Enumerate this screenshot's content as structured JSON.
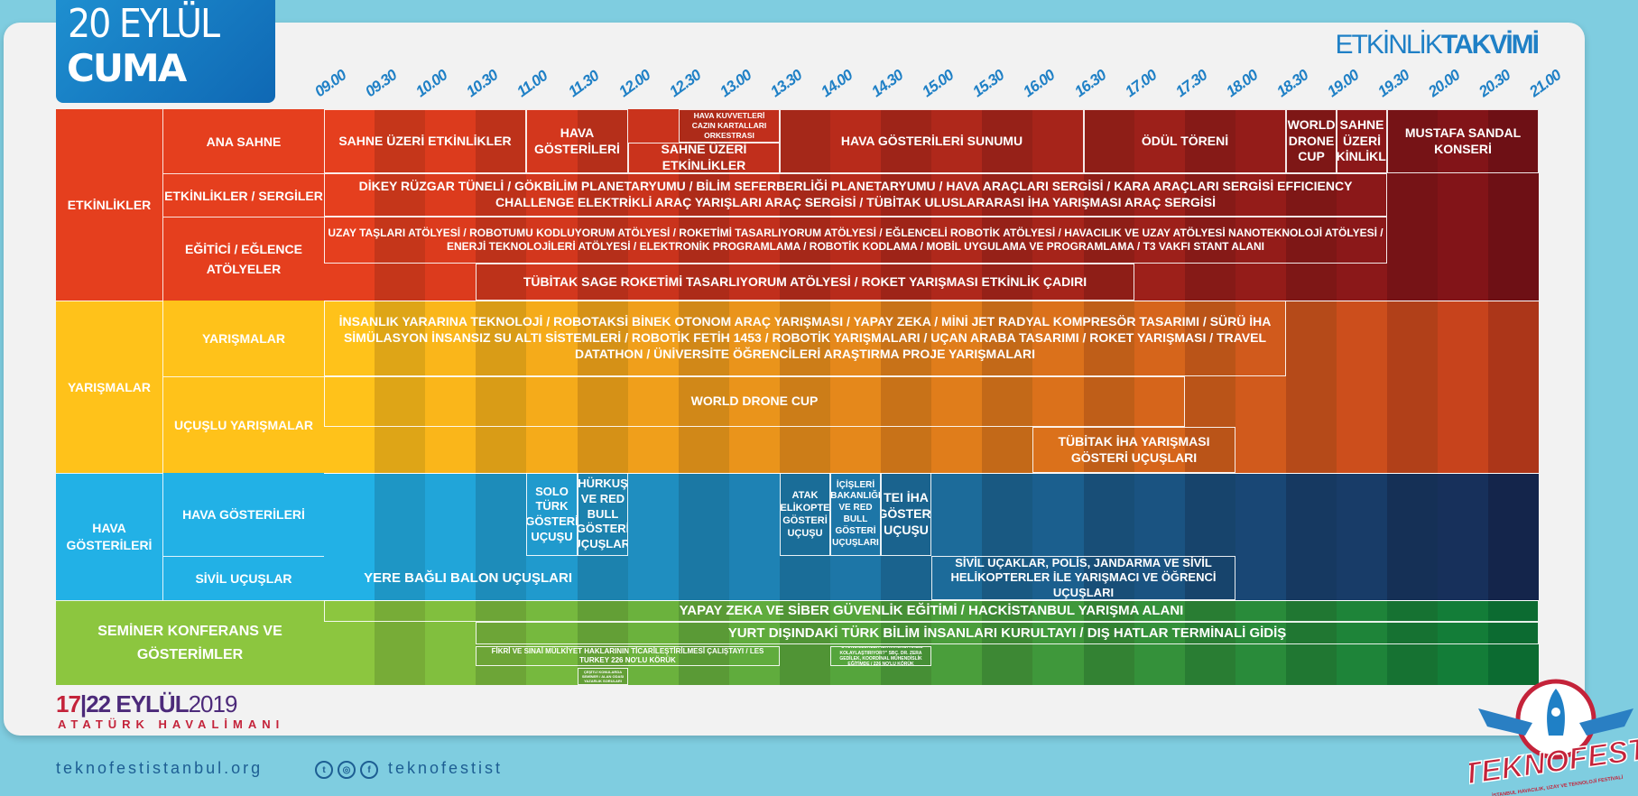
{
  "header": {
    "date_line1": "20 EYLÜL",
    "date_line2": "CUMA",
    "title_light": "ETKİNLİK",
    "title_bold": "TAKVİMİ"
  },
  "times": [
    "09.00",
    "09.30",
    "10.00",
    "10.30",
    "11.00",
    "11.30",
    "12.00",
    "12.30",
    "13.00",
    "13.30",
    "14.00",
    "14.30",
    "15.00",
    "15.30",
    "16.00",
    "16.30",
    "17.00",
    "17.30",
    "18.00",
    "18.30",
    "19.00",
    "19.30",
    "20.00",
    "20.30",
    "21.00"
  ],
  "categories": [
    {
      "id": "etk",
      "label": "ETKİNLİKLER",
      "colors": [
        "#e53f1e",
        "#7d1218"
      ]
    },
    {
      "id": "yar",
      "label": "YARIŞMALAR",
      "colors": [
        "#ffc21a",
        "#c43d1c"
      ]
    },
    {
      "id": "hava",
      "label": "HAVA GÖSTERİLERİ",
      "colors": [
        "#22b1e6",
        "#172a55"
      ]
    },
    {
      "id": "sem",
      "label": "SEMİNER KONFERANS VE GÖSTERİMLER",
      "colors": [
        "#8cc63f",
        "#0e7a38"
      ]
    }
  ],
  "subcategories": [
    {
      "label": "ANA SAHNE"
    },
    {
      "label": "ETKİNLİKLER / SERGİLER"
    },
    {
      "label": "EĞİTİCİ / EĞLENCE ATÖLYELER"
    },
    {
      "label": "YARIŞMALAR"
    },
    {
      "label": "UÇUŞLU YARIŞMALAR"
    },
    {
      "label": "HAVA GÖSTERİLERİ"
    },
    {
      "label": "SİVİL UÇUŞLAR"
    }
  ],
  "activities": [
    {
      "text": "SAHNE ÜZERİ ETKİNLİKLER"
    },
    {
      "text": "HAVA GÖSTERİLERİ"
    },
    {
      "text": "HAVA KUVVETLERİ CAZIN KARTALLARI ORKESTRASI"
    },
    {
      "text": "SAHNE ÜZERİ ETKİNLİKLER"
    },
    {
      "text": "HAVA GÖSTERİLERİ SUNUMU"
    },
    {
      "text": "ÖDÜL TÖRENİ"
    },
    {
      "text": "WORLD DRONE CUP"
    },
    {
      "text": "SAHNE ÜZERİ ETKİNLİKLER"
    },
    {
      "text": "MUSTAFA SANDAL KONSERİ"
    },
    {
      "text": "DİKEY RÜZGAR TÜNELİ / GÖKBİLİM PLANETARYUMU / BİLİM SEFERBERLİĞİ PLANETARYUMU / HAVA ARAÇLARI SERGİSİ / KARA ARAÇLARI SERGİSİ EFFICIENCY CHALLENGE ELEKTRİKLİ ARAÇ YARIŞLARI ARAÇ SERGİSİ / TÜBİTAK ULUSLARARASI İHA YARIŞMASI ARAÇ SERGİSİ"
    },
    {
      "text": "UZAY TAŞLARI ATÖLYESİ / ROBOTUMU KODLUYORUM ATÖLYESİ / ROKETİMİ TASARLIYORUM ATÖLYESİ / EĞLENCELİ ROBOTİK ATÖLYESİ / HAVACILIK VE UZAY ATÖLYESİ NANOTEKNOLOJİ ATÖLYESİ / ENERJİ TEKNOLOJİLERİ ATÖLYESİ / ELEKTRONİK PROGRAMLAMA / ROBOTİK KODLAMA / MOBİL UYGULAMA VE PROGRAMLAMA / T3 VAKFI STANT ALANI"
    },
    {
      "text": "TÜBİTAK SAGE ROKETİMİ TASARLIYORUM ATÖLYESİ / ROKET YARIŞMASI ETKİNLİK ÇADIRI"
    },
    {
      "text": "İNSANLIK YARARINA TEKNOLOJİ / ROBOTAKSİ BİNEK OTONOM ARAÇ YARIŞMASI / YAPAY ZEKA / MİNİ JET RADYAL KOMPRESÖR TASARIMI / SÜRÜ İHA SİMÜLASYON İNSANSIZ SU ALTI SİSTEMLERİ / ROBOTİK FETİH 1453 / ROBOTİK YARIŞMALARI / UÇAN ARABA TASARIMI / ROKET YARIŞMASI / TRAVEL DATATHON / ÜNİVERSİTE ÖĞRENCİLERİ ARAŞTIRMA PROJE YARIŞMALARI"
    },
    {
      "text": "WORLD DRONE CUP"
    },
    {
      "text": "TÜBİTAK İHA YARIŞMASI GÖSTERİ UÇUŞLARI"
    },
    {
      "text": "SOLO TÜRK GÖSTERİ UÇUŞU"
    },
    {
      "text": "HÜRKUŞ VE RED BULL GÖSTERİ UÇUŞLARI"
    },
    {
      "text": "ATAK HELİKOPTER GÖSTERİ UÇUŞU"
    },
    {
      "text": "İÇİŞLERİ BAKANLIĞI VE RED BULL GÖSTERİ UÇUŞLARI"
    },
    {
      "text": "TEI İHA GÖSTERİ UÇUŞU"
    },
    {
      "text": "YERE BAĞLI BALON UÇUŞLARI"
    },
    {
      "text": "SİVİL UÇAKLAR, POLİS, JANDARMA VE SİVİL HELİKOPTERLER İLE YARIŞMACI VE ÖĞRENCİ UÇUŞLARI"
    },
    {
      "text": "YAPAY ZEKA VE SİBER GÜVENLİK EĞİTİMİ / HACKİSTANBUL YARIŞMA ALANI"
    },
    {
      "text": "YURT DIŞINDAKİ TÜRK BİLİM İNSANLARI KURULTAYI / DIŞ HATLAR TERMİNALİ GİDİŞ"
    },
    {
      "text": "FİKRİ VE SINAİ MÜLKİYET HAKLARININ TİCARİLEŞTİRİLMESİ ÇALIŞTAYI / LES TURKEY 226 NO'LU KÖRÜK"
    },
    {
      "text": "\"OTONOMLUKLER ILKYATMACI HASIL KOLAYLAŞTIRIYOR?\" SBÇ. DR. ZERA GEDİLEK, KOORDİNAL MÜHENDİSLİK EĞİTİMDE / 226 NO'LU KÖRÜK"
    },
    {
      "text": "ÇEŞİTLİ KONULARDA SEMİNER / ALAN ODASI YAZARLIK SORULARI"
    }
  ],
  "footer": {
    "website": "teknofestistanbul.org",
    "social_handle": "teknofestist",
    "event_dates_a": "17",
    "event_dates_b": "22 EYLÜL",
    "event_year": "2019",
    "event_place": "ATATÜRK HAVALİMANI",
    "logo_text": "TEKNOFEST",
    "logo_subtitle": "İSTANBUL HAVACILIK, UZAY VE TEKNOLOJİ FESTİVALİ"
  },
  "icons": [
    "twitter-icon",
    "instagram-icon",
    "facebook-icon",
    "rocket-icon"
  ]
}
